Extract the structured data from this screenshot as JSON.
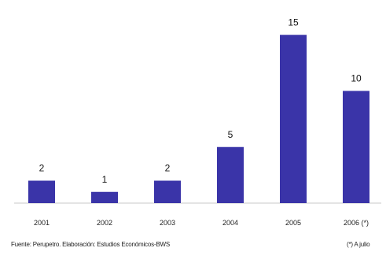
{
  "chart_data": {
    "type": "bar",
    "title": "",
    "xlabel": "",
    "ylabel": "",
    "categories": [
      "2001",
      "2002",
      "2003",
      "2004",
      "2005",
      "2006 (*)"
    ],
    "values": [
      2,
      1,
      2,
      5,
      15,
      10
    ],
    "data_labels": [
      "2",
      "1",
      "2",
      "5",
      "15",
      "10"
    ],
    "ylim": [
      0,
      16
    ],
    "grid": false,
    "legend": "none",
    "bar_color": "#3a34a8"
  },
  "footer": {
    "source": "Fuente: Perupetro. Elaboración: Estudios Económicos-BWS",
    "note": "(*) A julio"
  }
}
